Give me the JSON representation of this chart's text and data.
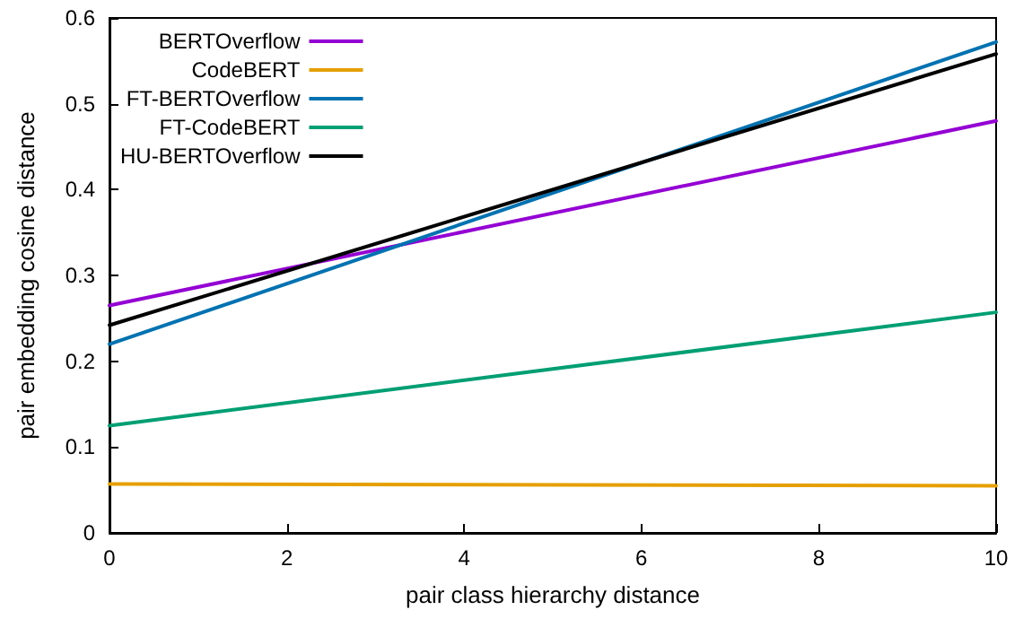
{
  "chart_data": {
    "type": "line",
    "xlabel": "pair class hierarchy distance",
    "ylabel": "pair embedding cosine distance",
    "x": [
      0,
      10
    ],
    "series": [
      {
        "name": "BERTOverflow",
        "color": "#9400d3",
        "values": [
          0.265,
          0.48
        ]
      },
      {
        "name": "CodeBERT",
        "color": "#e69f00",
        "values": [
          0.057,
          0.055
        ]
      },
      {
        "name": "FT-BERTOverflow",
        "color": "#0072b2",
        "values": [
          0.22,
          0.572
        ]
      },
      {
        "name": "FT-CodeBERT",
        "color": "#009e73",
        "values": [
          0.125,
          0.257
        ]
      },
      {
        "name": "HU-BERTOverflow",
        "color": "#000000",
        "values": [
          0.242,
          0.558
        ]
      }
    ],
    "xlim": [
      0,
      10
    ],
    "xticks": [
      0,
      2,
      4,
      6,
      8,
      10
    ],
    "ylim": [
      0,
      0.6
    ],
    "yticks": [
      0,
      0.1,
      0.2,
      0.3,
      0.4,
      0.5,
      0.6
    ],
    "grid": false,
    "legend": "top left",
    "marker": "none",
    "line_style": "solid"
  }
}
